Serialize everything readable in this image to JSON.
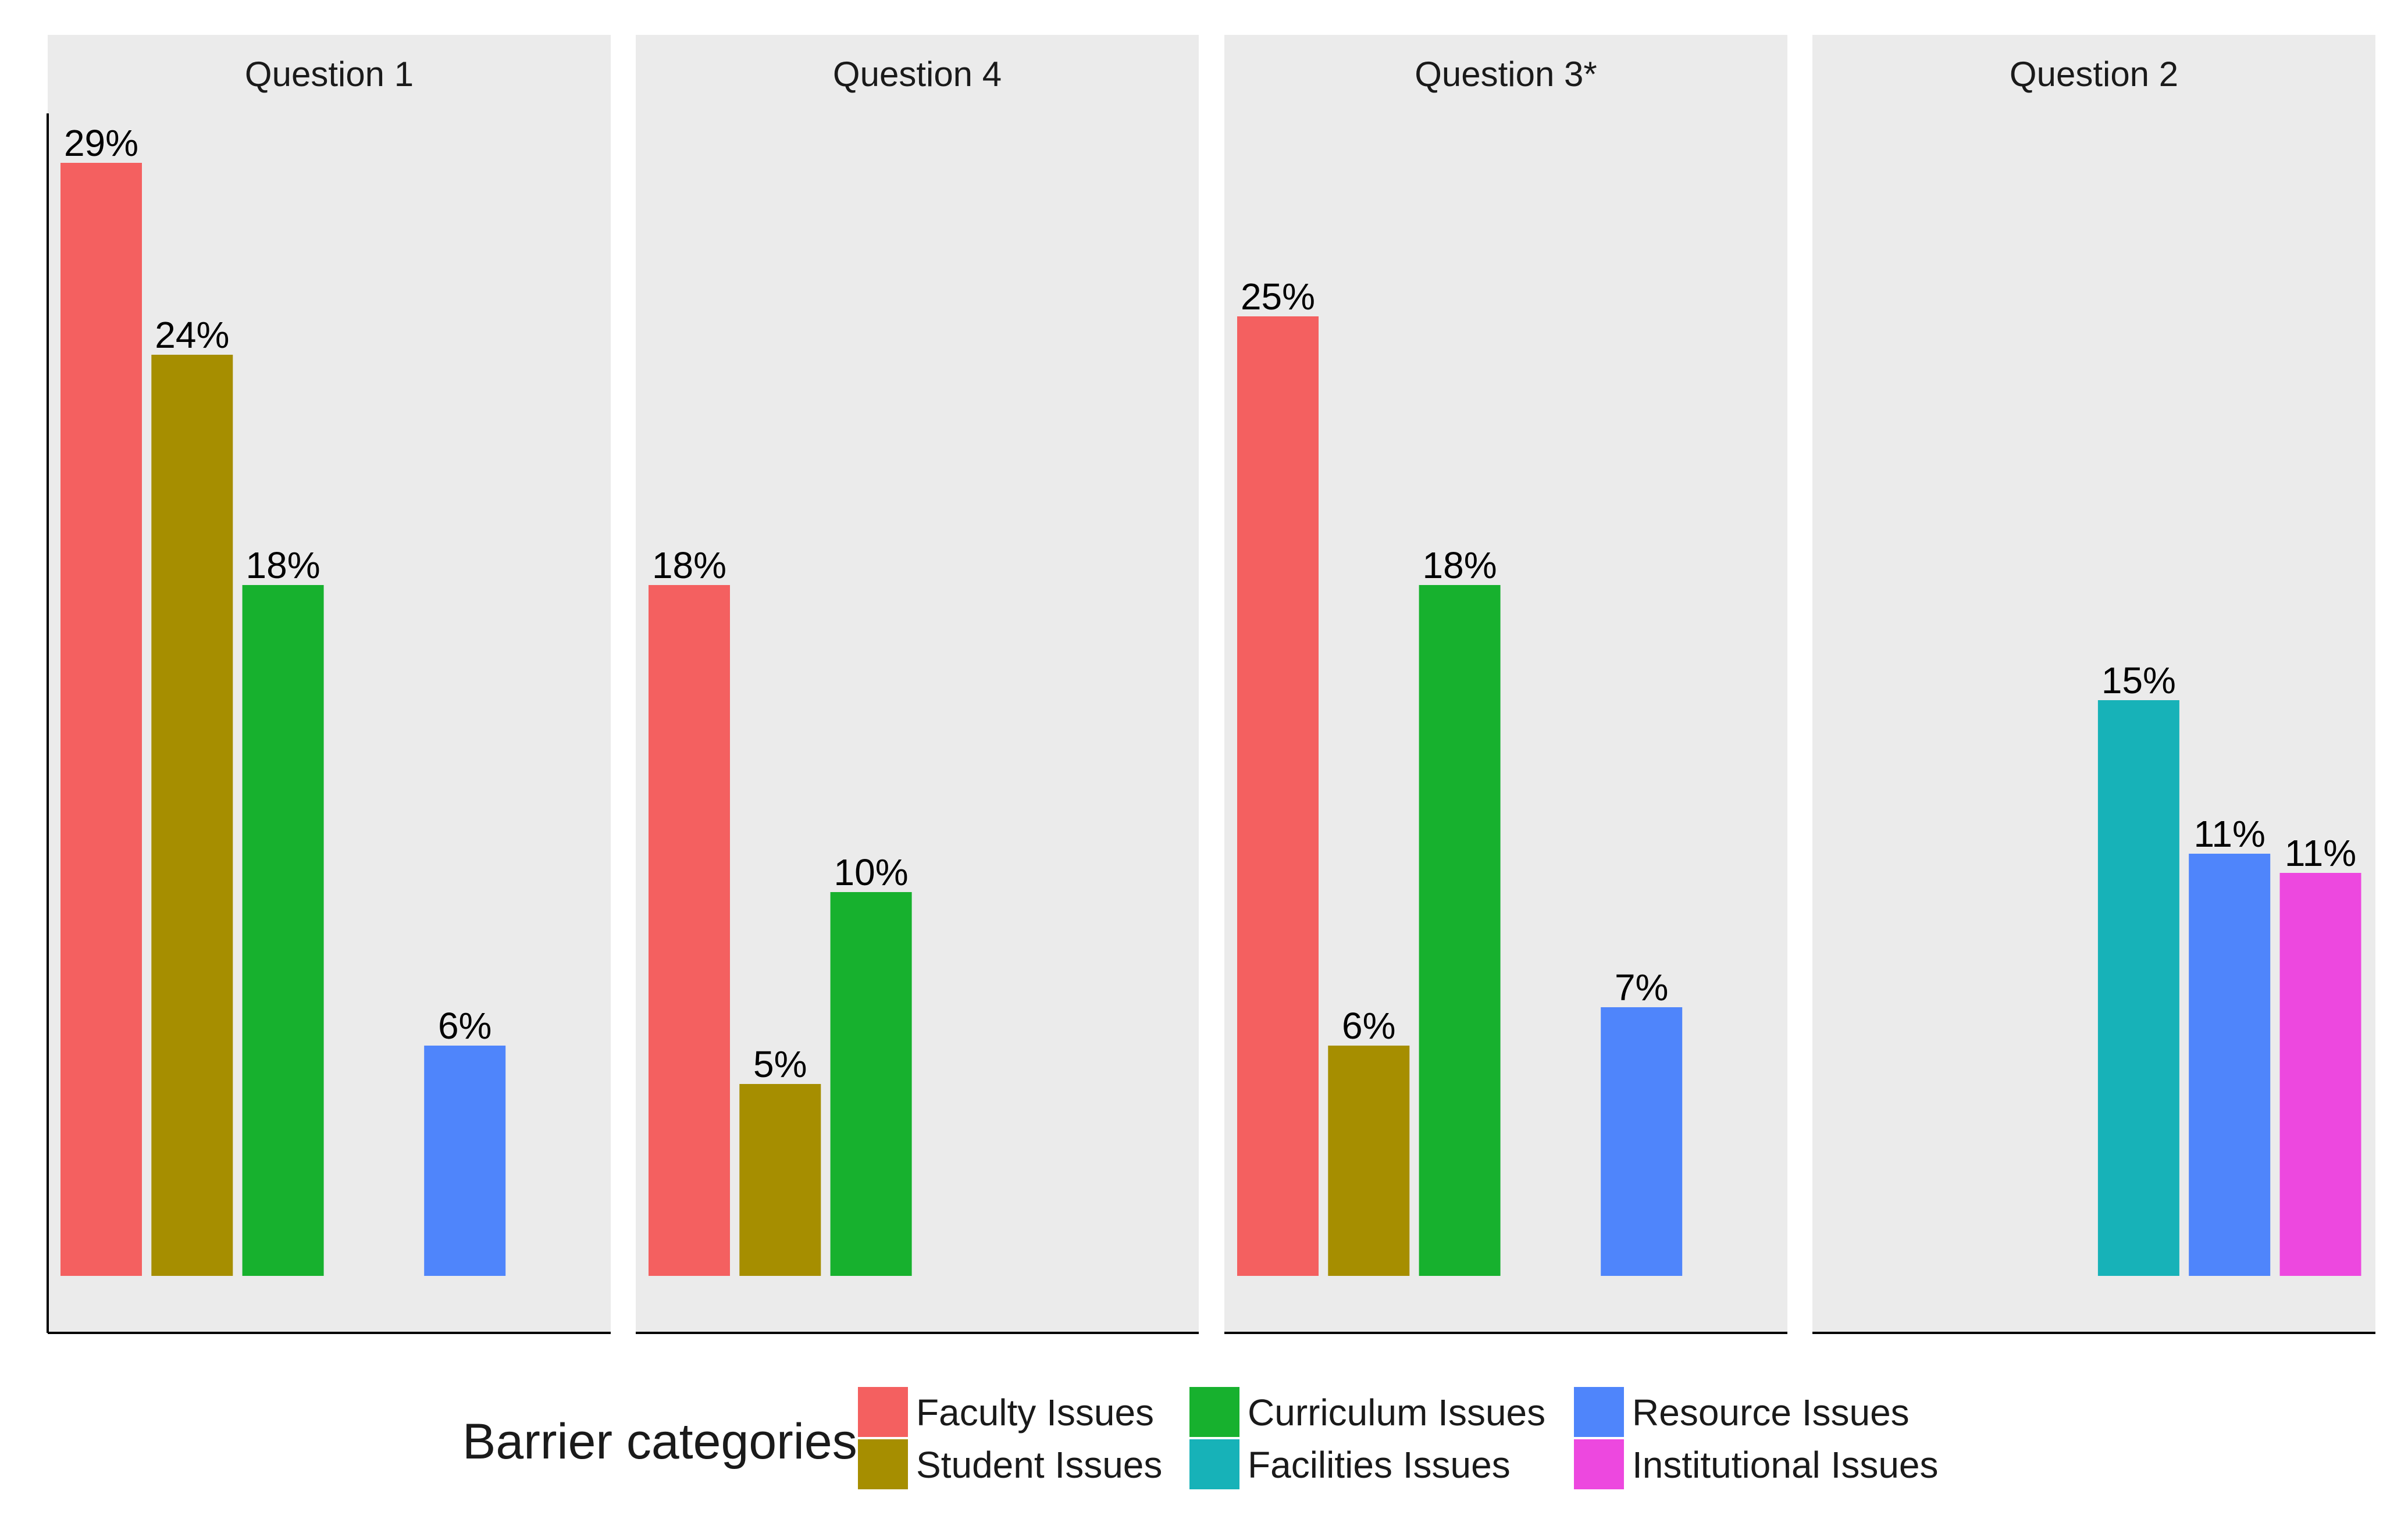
{
  "chart_data": {
    "type": "bar",
    "categories": [
      "Faculty Issues",
      "Student Issues",
      "Curriculum Issues",
      "Facilities Issues",
      "Resource Issues",
      "Institutional Issues"
    ],
    "colors": [
      "#F46060",
      "#A68E00",
      "#17B12E",
      "#17B2B8",
      "#4F85FB",
      "#ED48DF"
    ],
    "facets": [
      {
        "title": "Question 1",
        "values": [
          29,
          24,
          18,
          null,
          6,
          null
        ],
        "labels": [
          "29%",
          "24%",
          "18%",
          "",
          "6%",
          ""
        ]
      },
      {
        "title": "Question 4",
        "values": [
          18,
          5,
          10,
          null,
          null,
          null
        ],
        "labels": [
          "18%",
          "5%",
          "10%",
          "",
          "",
          ""
        ]
      },
      {
        "title": "Question 3*",
        "values": [
          25,
          6,
          18,
          null,
          7,
          null
        ],
        "labels": [
          "25%",
          "6%",
          "18%",
          "",
          "7%",
          ""
        ]
      },
      {
        "title": "Question 2",
        "values": [
          null,
          null,
          null,
          15,
          11,
          10.5
        ],
        "labels": [
          "",
          "",
          "",
          "15%",
          "11%",
          "11%"
        ]
      }
    ],
    "ylim": [
      0,
      30
    ],
    "unit": "%",
    "xlabel": "",
    "ylabel": "",
    "grid": false,
    "legend": {
      "title": "Barrier categories",
      "position": "bottom",
      "entries": [
        "Faculty Issues",
        "Curriculum Issues",
        "Resource Issues",
        "Student Issues",
        "Facilities Issues",
        "Institutional Issues"
      ]
    }
  },
  "panel_background": "#EBEBEB"
}
